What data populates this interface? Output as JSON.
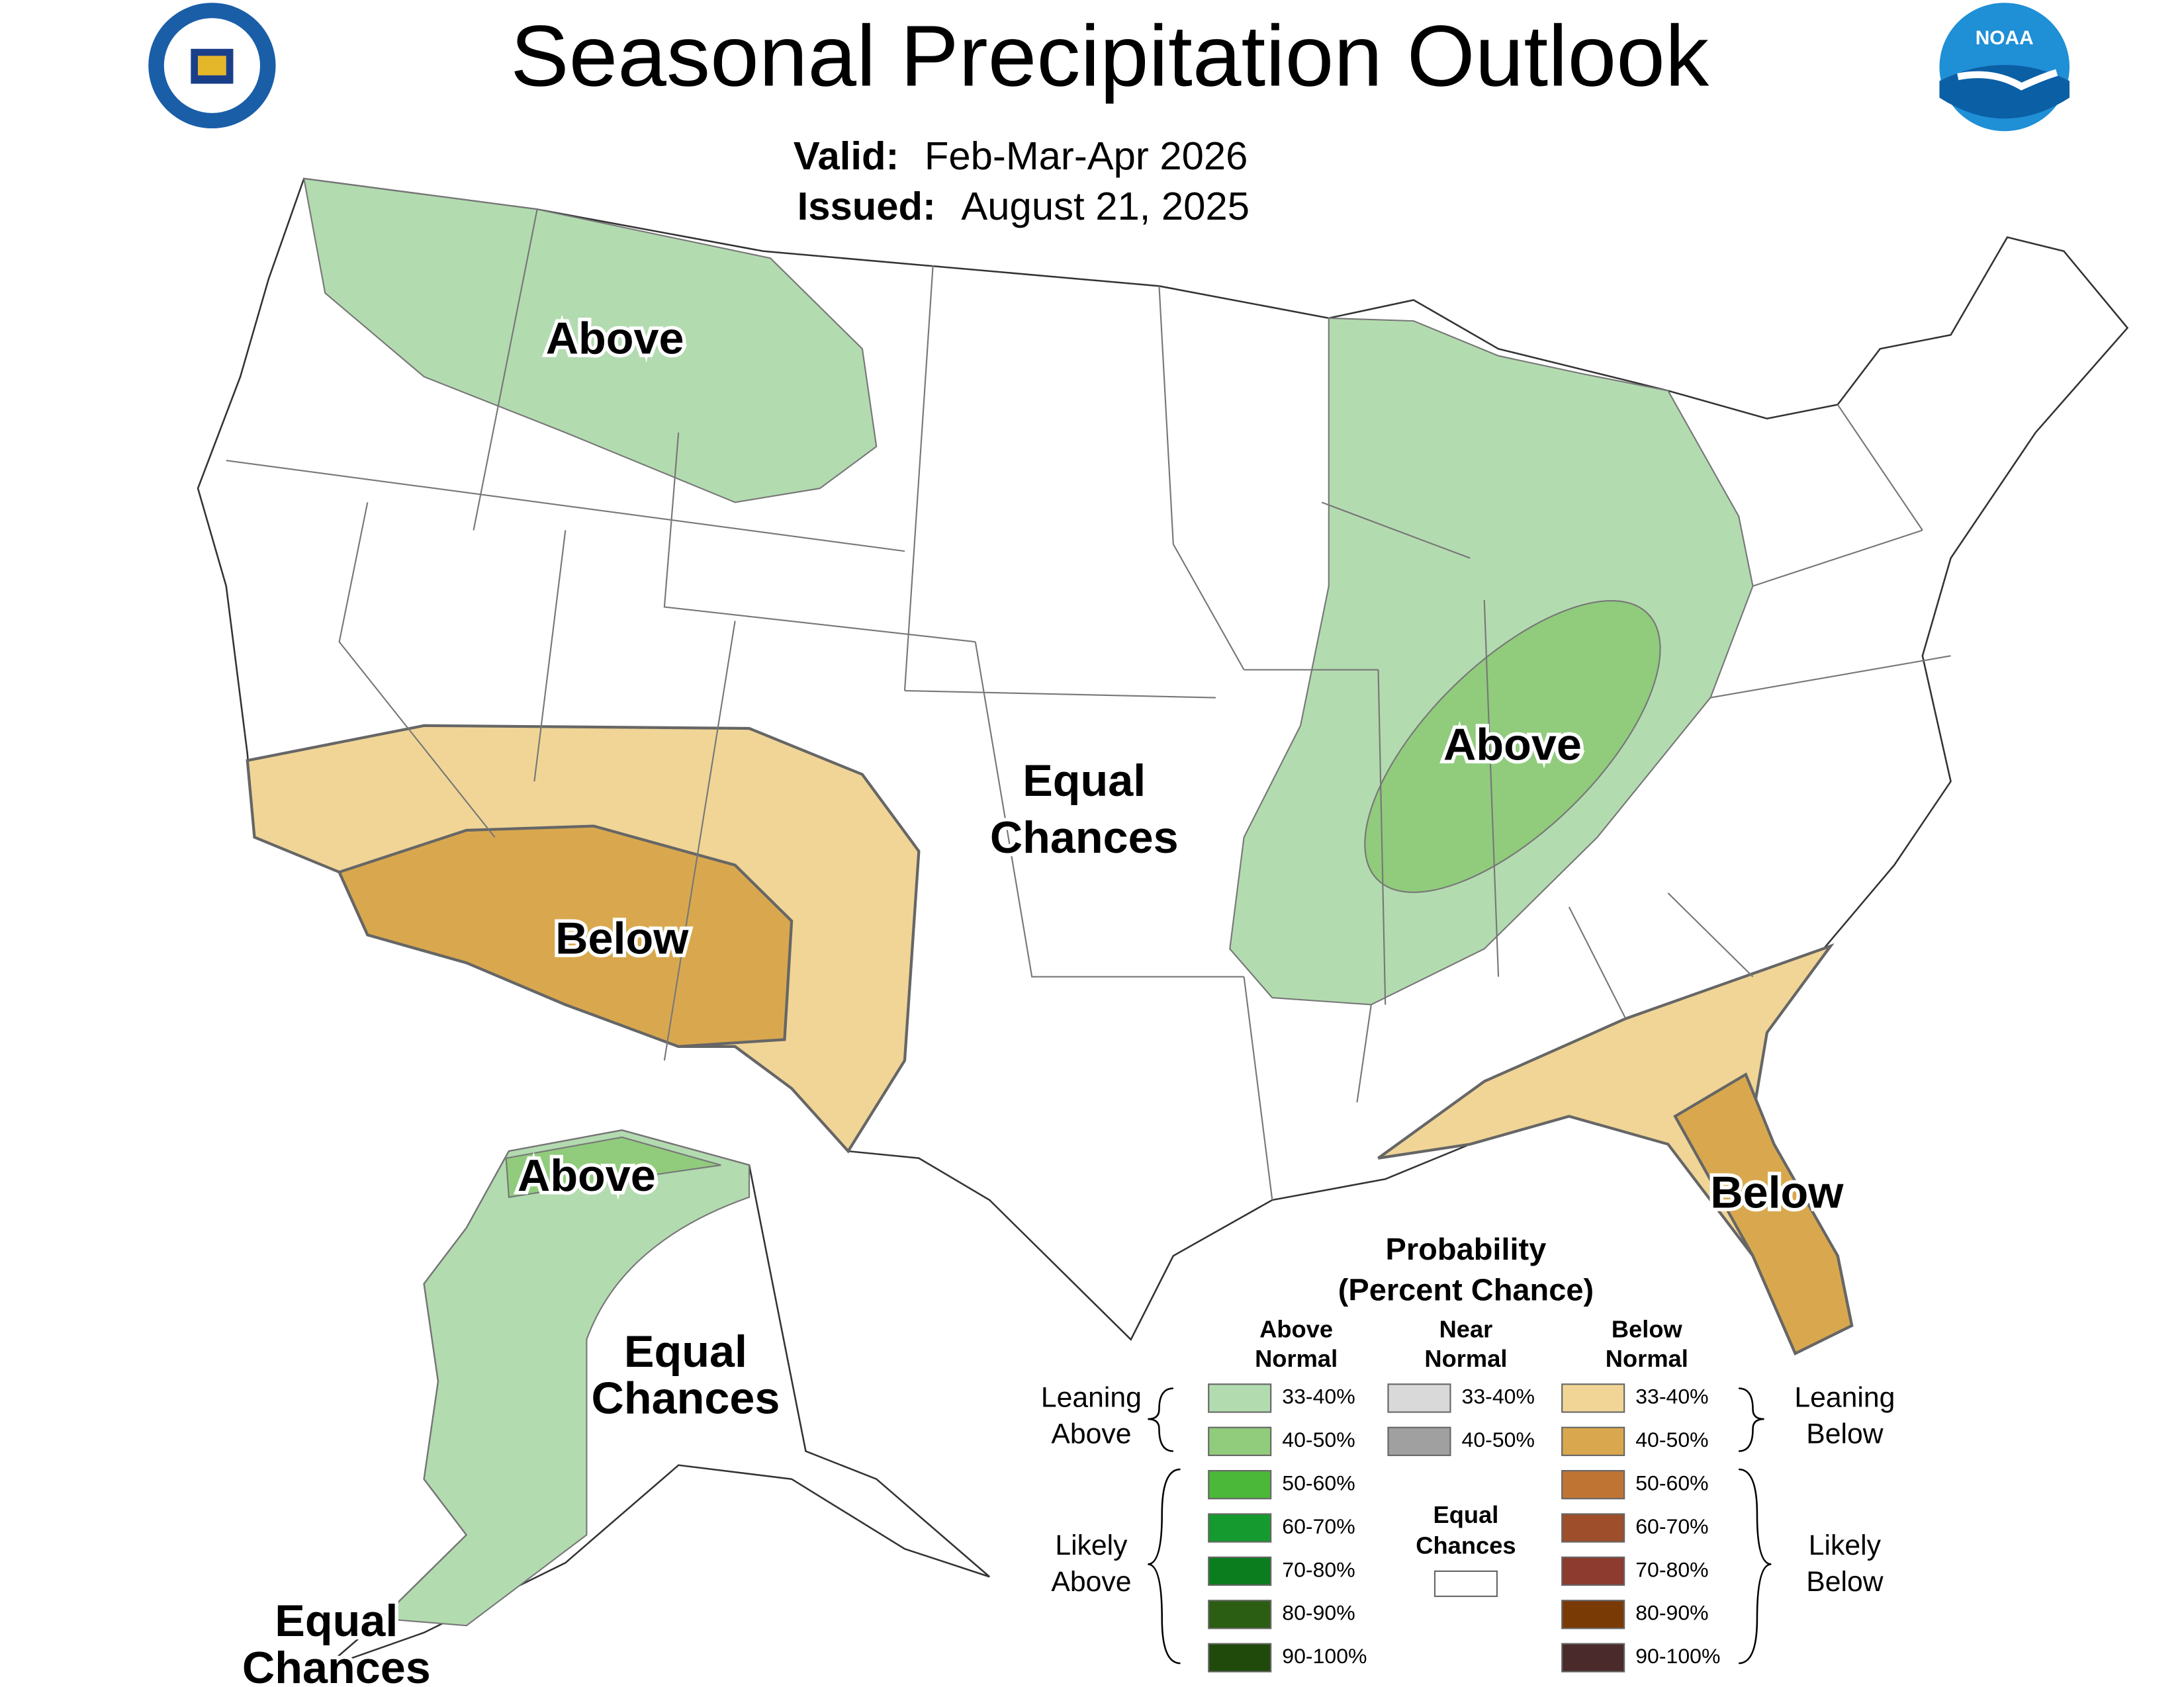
{
  "header": {
    "title": "Seasonal Precipitation Outlook",
    "valid_label": "Valid:",
    "valid": "Feb-Mar-Apr 2026",
    "issued_label": "Issued:",
    "issued": "August 21, 2025"
  },
  "logos": {
    "noaa": "NOAA"
  },
  "map_labels": [
    [
      "Above"
    ],
    [
      "Above"
    ],
    [
      "Equal",
      "Chances"
    ],
    [
      "Below"
    ],
    [
      "Below"
    ],
    [
      "Above"
    ],
    [
      "Equal",
      "Chances"
    ],
    [
      "Equal",
      "Chances"
    ]
  ],
  "legend": {
    "title": [
      "Probability",
      "(Percent Chance)"
    ],
    "columns": [
      {
        "header": [
          "Above",
          "Normal"
        ],
        "items": [
          {
            "range": "33-40%",
            "color": "#b3dbb0"
          },
          {
            "range": "40-50%",
            "color": "#90cc7c"
          },
          {
            "range": "50-60%",
            "color": "#4cb83a"
          },
          {
            "range": "60-70%",
            "color": "#149a2e"
          },
          {
            "range": "70-80%",
            "color": "#0b7d1e"
          },
          {
            "range": "80-90%",
            "color": "#2b5e12"
          },
          {
            "range": "90-100%",
            "color": "#1f4a0b"
          }
        ]
      },
      {
        "header": [
          "Near",
          "Normal"
        ],
        "items": [
          {
            "range": "33-40%",
            "color": "#d9d9d9"
          },
          {
            "range": "40-50%",
            "color": "#a0a0a0"
          }
        ]
      },
      {
        "header": [
          "Below",
          "Normal"
        ],
        "items": [
          {
            "range": "33-40%",
            "color": "#f0d596"
          },
          {
            "range": "40-50%",
            "color": "#d9a84e"
          },
          {
            "range": "50-60%",
            "color": "#c07434"
          },
          {
            "range": "60-70%",
            "color": "#9e4e2b"
          },
          {
            "range": "70-80%",
            "color": "#8c3b2e"
          },
          {
            "range": "80-90%",
            "color": "#7a3a06"
          },
          {
            "range": "90-100%",
            "color": "#4a2a2a"
          }
        ]
      }
    ],
    "brace_labels": {
      "leaning_above": [
        "Leaning",
        "Above"
      ],
      "likely_above": [
        "Likely",
        "Above"
      ],
      "leaning_below": [
        "Leaning",
        "Below"
      ],
      "likely_below": [
        "Likely",
        "Below"
      ]
    },
    "equal_chances": [
      "Equal",
      "Chances"
    ]
  }
}
